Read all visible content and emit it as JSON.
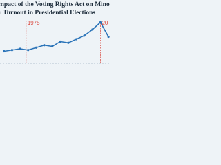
{
  "chart_data": {
    "type": "line",
    "title": "mpact of the Voting Rights Act on Minority",
    "subtitle": "r Turnout in Presidential Elections",
    "x": [
      1964,
      1968,
      1972,
      1976,
      1980,
      1984,
      1988,
      1992,
      1996,
      2000,
      2004,
      2008,
      2012,
      2016
    ],
    "series": [
      {
        "color": "#2a73b8",
        "values": [
          40,
          41,
          42,
          41,
          43,
          45,
          44,
          48,
          47,
          50,
          53,
          58,
          64,
          52
        ]
      }
    ],
    "xlim": [
      1962,
      2017
    ],
    "ylim": [
      30,
      70
    ],
    "annotations": [
      {
        "x": 1975,
        "text": "1975"
      },
      {
        "x": 2012,
        "text": "20"
      }
    ]
  }
}
